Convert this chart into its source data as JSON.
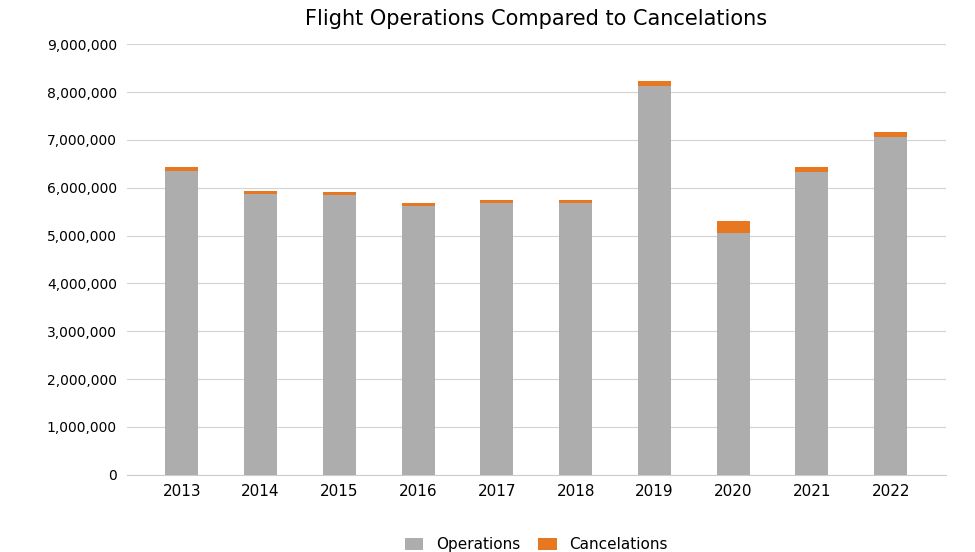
{
  "title": "Flight Operations Compared to Cancelations",
  "years": [
    "2013",
    "2014",
    "2015",
    "2016",
    "2017",
    "2018",
    "2019",
    "2020",
    "2021",
    "2022"
  ],
  "operations": [
    6350000,
    5870000,
    5850000,
    5620000,
    5680000,
    5680000,
    8130000,
    5050000,
    6320000,
    7050000
  ],
  "cancelations": [
    90000,
    65000,
    55000,
    55000,
    65000,
    65000,
    95000,
    260000,
    120000,
    115000
  ],
  "operations_color": "#ADADAD",
  "cancelations_color": "#E87722",
  "background_color": "#FFFFFF",
  "title_fontsize": 15,
  "legend_labels": [
    "Operations",
    "Cancelations"
  ],
  "ylim": [
    0,
    9000000
  ],
  "yticks": [
    0,
    1000000,
    2000000,
    3000000,
    4000000,
    5000000,
    6000000,
    7000000,
    8000000,
    9000000
  ],
  "grid_color": "#D3D3D3"
}
